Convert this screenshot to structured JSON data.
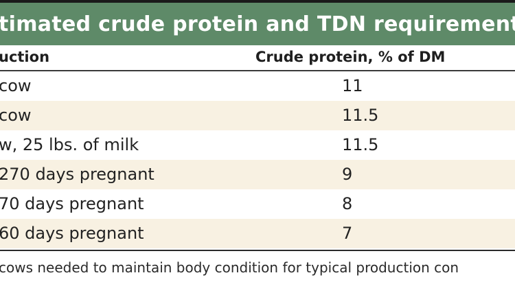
{
  "table": {
    "title": "timated crude protein and TDN requirement",
    "columns": {
      "production": "uction",
      "crude_protein": "Crude protein, % of DM"
    },
    "rows": [
      {
        "production": "cow",
        "crude_protein": "11"
      },
      {
        "production": "cow",
        "crude_protein": "11.5"
      },
      {
        "production": "w, 25 lbs. of milk",
        "crude_protein": "11.5"
      },
      {
        "production": "270 days pregnant",
        "crude_protein": "9"
      },
      {
        "production": "70 days pregnant",
        "crude_protein": "8"
      },
      {
        "production": "60 days pregnant",
        "crude_protein": "7"
      }
    ],
    "footnote": "cows needed to maintain body condition for typical production con"
  },
  "colors": {
    "title_bar": "#5e8a68",
    "title_text": "#ffffff",
    "row_shade": "#f8f1e2",
    "rule": "#2a2a2a"
  }
}
